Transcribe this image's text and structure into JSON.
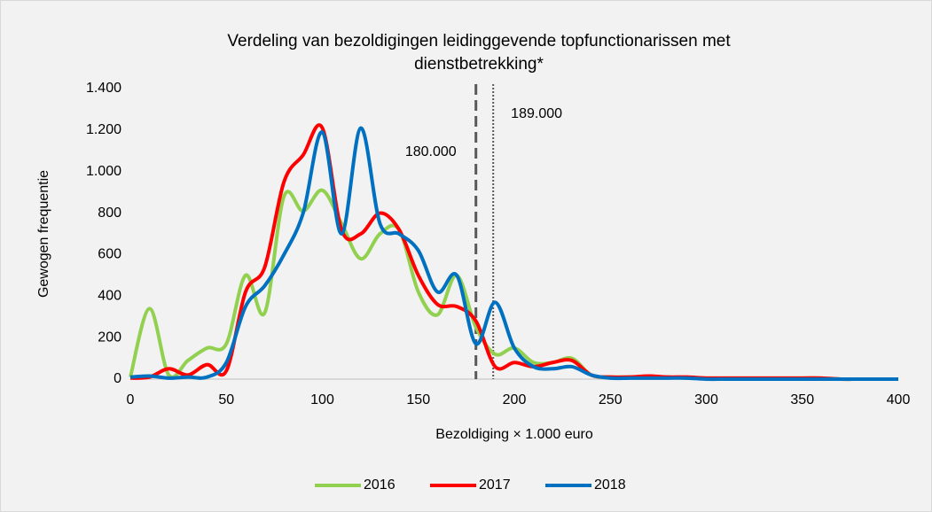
{
  "chart_data": {
    "type": "line",
    "title": [
      "Verdeling van bezoldigingen leidinggevende topfunctionarissen met",
      "dienstbetrekking*"
    ],
    "x_label": "Bezoldiging × 1.000 euro",
    "y_label": "Gewogen frequentie",
    "x": [
      0,
      10,
      20,
      30,
      40,
      50,
      60,
      70,
      80,
      90,
      100,
      110,
      120,
      130,
      140,
      150,
      160,
      170,
      180,
      190,
      200,
      210,
      220,
      230,
      240,
      250,
      260,
      270,
      280,
      290,
      300,
      310,
      320,
      330,
      340,
      350,
      360,
      370,
      380,
      390,
      400
    ],
    "series": [
      {
        "name": "2016",
        "color": "#92d050",
        "values": [
          10,
          340,
          20,
          90,
          150,
          170,
          500,
          320,
          880,
          810,
          910,
          750,
          580,
          700,
          720,
          420,
          310,
          500,
          250,
          120,
          150,
          80,
          80,
          100,
          20,
          10,
          10,
          10,
          10,
          5,
          5,
          5,
          5,
          5,
          5,
          5,
          5,
          0,
          0,
          0,
          0
        ]
      },
      {
        "name": "2017",
        "color": "#ff0000",
        "values": [
          5,
          10,
          50,
          20,
          70,
          40,
          420,
          540,
          950,
          1080,
          1210,
          720,
          700,
          800,
          720,
          500,
          360,
          350,
          280,
          60,
          80,
          60,
          80,
          90,
          20,
          10,
          10,
          15,
          10,
          10,
          5,
          5,
          5,
          5,
          5,
          5,
          5,
          0,
          0,
          0,
          0
        ]
      },
      {
        "name": "2018",
        "color": "#0070c0",
        "values": [
          10,
          15,
          5,
          10,
          10,
          80,
          350,
          450,
          600,
          800,
          1190,
          700,
          1210,
          750,
          700,
          620,
          420,
          500,
          170,
          370,
          150,
          60,
          50,
          60,
          20,
          5,
          5,
          5,
          5,
          5,
          0,
          0,
          0,
          0,
          0,
          0,
          0,
          0,
          0,
          0,
          0
        ]
      }
    ],
    "reference_lines": [
      {
        "x": 180,
        "label": "180.000",
        "style": "dashed"
      },
      {
        "x": 189,
        "label": "189.000",
        "style": "dotted"
      }
    ],
    "xlim": [
      0,
      400
    ],
    "xticks": [
      0,
      50,
      100,
      150,
      200,
      250,
      300,
      350,
      400
    ],
    "ylim": [
      0,
      1400
    ],
    "yticks": [
      0,
      {
        "value": 200,
        "label": "200"
      },
      400,
      600,
      800,
      {
        "value": 1000,
        "label": "1.000"
      },
      {
        "value": 1200,
        "label": "1.200"
      },
      {
        "value": 1400,
        "label": "1.400"
      }
    ],
    "legend": "bottom",
    "grid": false
  }
}
